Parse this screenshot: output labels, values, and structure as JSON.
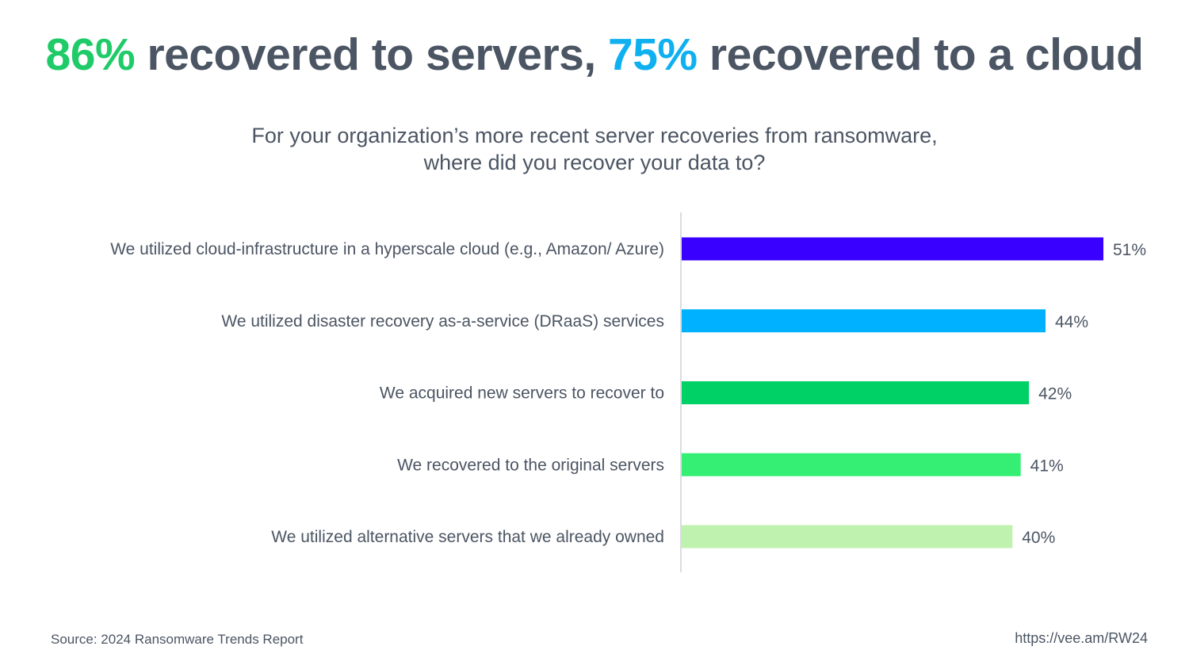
{
  "headline": {
    "pct1": "86%",
    "text1": " recovered to servers, ",
    "pct2": "75%",
    "text2": " recovered to a cloud"
  },
  "subtitle": {
    "line1": "For your organization’s more recent server recoveries from ransomware,",
    "line2": "where did you recover your data to?"
  },
  "colors": {
    "headline_green": "#1fcb68",
    "headline_blue": "#0fb0f0",
    "axis_line": "#d9dcdf"
  },
  "chart_data": {
    "type": "bar",
    "orientation": "horizontal",
    "categories": [
      "We utilized cloud-infrastructure in a hyperscale cloud (e.g., Amazon/ Azure)",
      "We utilized disaster recovery as-a-service (DRaaS) services",
      "We acquired new servers to recover to",
      "We recovered to the original servers",
      "We utilized alternative servers that we already owned"
    ],
    "values": [
      51,
      44,
      42,
      41,
      40
    ],
    "value_labels": [
      "51%",
      "44%",
      "42%",
      "41%",
      "40%"
    ],
    "bar_colors": [
      "#3a00ff",
      "#00b1ff",
      "#00d166",
      "#34ef73",
      "#bff2ae"
    ],
    "xlim": [
      0,
      51
    ],
    "grid": false,
    "legend": "none"
  },
  "footer": {
    "source": "Source: 2024 Ransomware Trends Report",
    "url": "https://vee.am/RW24"
  }
}
